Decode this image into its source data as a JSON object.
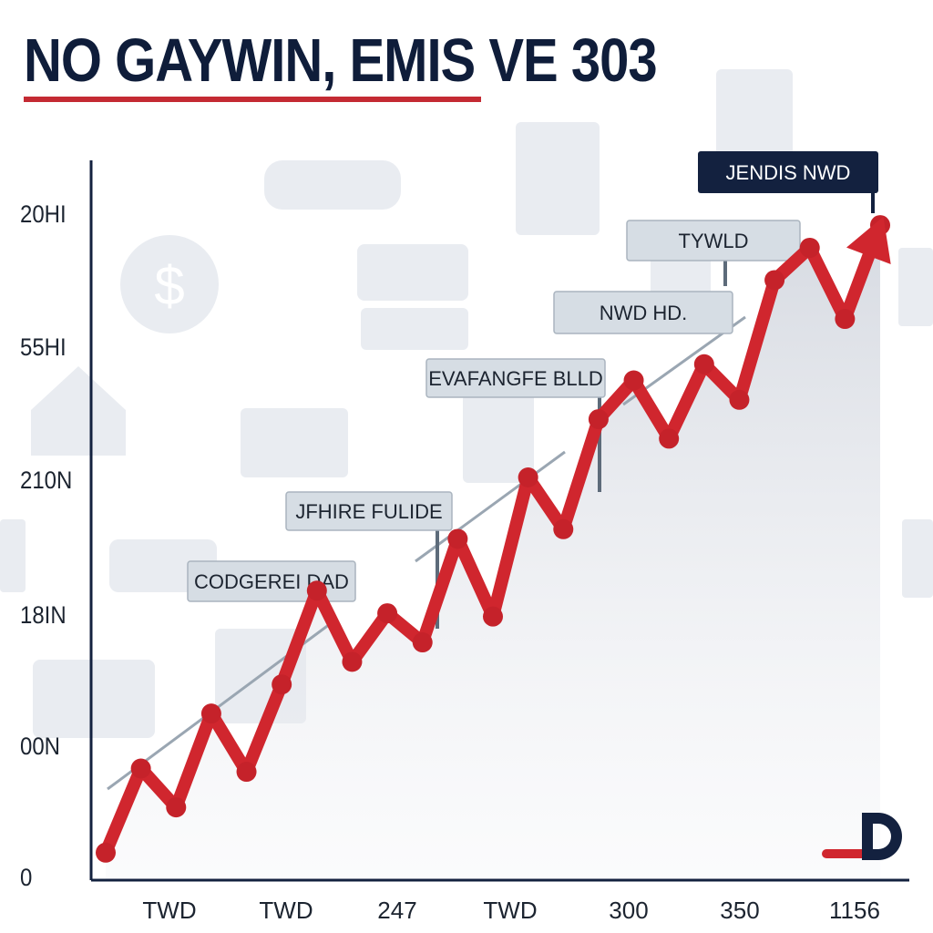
{
  "title": "NO GAYWIN, EMIS VE 303",
  "colors": {
    "title": "#0f1d3a",
    "accent": "#c42a33",
    "line": "#d0262e",
    "axis": "#13213f",
    "callout_fill": "#d6dde4",
    "callout_dark": "#13213f"
  },
  "chart_data": {
    "type": "line",
    "title": "NO GAYWIN, EMIS VE 303",
    "xlabel": "",
    "ylabel": "",
    "y_tick_labels": [
      "0",
      "00N",
      "18IN",
      "210N",
      "55HI",
      "20HI"
    ],
    "x_tick_labels": [
      "TWD",
      "TWD",
      "247",
      "TWD",
      "300",
      "350",
      "1156"
    ],
    "ylim": [
      0,
      20
    ],
    "grid": false,
    "legend": "none",
    "series": [
      {
        "values": [
          0.4,
          3.0,
          1.8,
          4.7,
          2.9,
          5.6,
          8.5,
          6.3,
          7.8,
          6.9,
          10.1,
          7.7,
          12.0,
          10.4,
          13.8,
          15.0,
          13.2,
          15.5,
          14.4,
          18.1,
          19.1,
          16.9,
          19.8
        ]
      }
    ],
    "callouts": [
      "CODGEREI DAD",
      "JFHIRE FULIDE",
      "EVAFANGFE BLLD",
      "NWD HD.",
      "TYWLD",
      "JENDIS NWD"
    ]
  },
  "logo_text": "D"
}
